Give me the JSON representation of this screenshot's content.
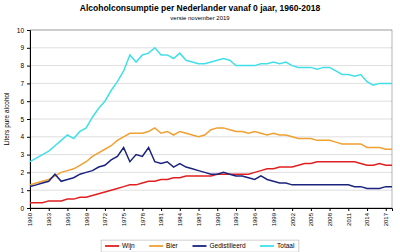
{
  "chart_data": {
    "type": "line",
    "title": "Alcoholconsumptie per Nederlander vanaf 0 jaar, 1960-2018",
    "subtitle": "versie november 2019",
    "y_label": "Liters pure alcohol",
    "x": [
      1960,
      1961,
      1962,
      1963,
      1964,
      1965,
      1966,
      1967,
      1968,
      1969,
      1970,
      1971,
      1972,
      1973,
      1974,
      1975,
      1976,
      1977,
      1978,
      1979,
      1980,
      1981,
      1982,
      1983,
      1984,
      1985,
      1986,
      1987,
      1988,
      1989,
      1990,
      1991,
      1992,
      1993,
      1994,
      1995,
      1996,
      1997,
      1998,
      1999,
      2000,
      2001,
      2002,
      2003,
      2004,
      2005,
      2006,
      2007,
      2008,
      2009,
      2010,
      2011,
      2012,
      2013,
      2014,
      2015,
      2016,
      2017,
      2018
    ],
    "xlim": [
      1960,
      2018
    ],
    "xticks": [
      1960,
      1963,
      1966,
      1969,
      1972,
      1975,
      1978,
      1981,
      1984,
      1987,
      1990,
      1993,
      1996,
      1999,
      2002,
      2005,
      2008,
      2011,
      2014,
      2017
    ],
    "ylim": [
      0,
      10
    ],
    "yticks": [
      0,
      1,
      2,
      3,
      4,
      5,
      6,
      7,
      8,
      9,
      10
    ],
    "grid": true,
    "legend": "bottom",
    "series": [
      {
        "name": "Wijn",
        "color": "#e02020",
        "values": [
          0.3,
          0.3,
          0.3,
          0.4,
          0.4,
          0.4,
          0.5,
          0.5,
          0.6,
          0.6,
          0.7,
          0.8,
          0.9,
          1.0,
          1.1,
          1.2,
          1.3,
          1.3,
          1.4,
          1.5,
          1.5,
          1.6,
          1.6,
          1.7,
          1.7,
          1.8,
          1.8,
          1.8,
          1.8,
          1.8,
          1.9,
          1.9,
          1.9,
          1.9,
          1.9,
          1.9,
          2.0,
          2.1,
          2.2,
          2.2,
          2.3,
          2.3,
          2.3,
          2.4,
          2.5,
          2.5,
          2.6,
          2.6,
          2.6,
          2.6,
          2.6,
          2.6,
          2.6,
          2.5,
          2.4,
          2.4,
          2.5,
          2.4,
          2.4
        ]
      },
      {
        "name": "Bier",
        "color": "#f0a030",
        "values": [
          1.3,
          1.4,
          1.5,
          1.6,
          1.8,
          2.0,
          2.1,
          2.2,
          2.4,
          2.6,
          2.9,
          3.1,
          3.3,
          3.5,
          3.8,
          4.0,
          4.2,
          4.2,
          4.2,
          4.3,
          4.5,
          4.2,
          4.3,
          4.1,
          4.3,
          4.2,
          4.1,
          4.0,
          4.1,
          4.4,
          4.5,
          4.5,
          4.4,
          4.3,
          4.3,
          4.2,
          4.3,
          4.2,
          4.1,
          4.2,
          4.1,
          4.1,
          4.0,
          3.9,
          3.9,
          3.9,
          3.8,
          3.8,
          3.8,
          3.7,
          3.6,
          3.6,
          3.6,
          3.6,
          3.4,
          3.4,
          3.4,
          3.3,
          3.3
        ]
      },
      {
        "name": "Gedistilleerd",
        "color": "#1a237e",
        "values": [
          1.2,
          1.3,
          1.4,
          1.5,
          1.9,
          1.5,
          1.6,
          1.7,
          1.9,
          2.0,
          2.1,
          2.3,
          2.4,
          2.7,
          2.9,
          3.4,
          2.6,
          3.0,
          2.9,
          3.4,
          2.6,
          2.5,
          2.6,
          2.3,
          2.5,
          2.3,
          2.2,
          2.1,
          2.0,
          1.9,
          1.9,
          2.0,
          1.9,
          1.8,
          1.8,
          1.7,
          1.6,
          1.8,
          1.6,
          1.5,
          1.4,
          1.4,
          1.3,
          1.3,
          1.3,
          1.3,
          1.3,
          1.3,
          1.3,
          1.3,
          1.3,
          1.3,
          1.2,
          1.2,
          1.1,
          1.1,
          1.1,
          1.2,
          1.2
        ]
      },
      {
        "name": "Totaal",
        "color": "#40e0e8",
        "values": [
          2.6,
          2.8,
          3.0,
          3.2,
          3.5,
          3.8,
          4.1,
          3.9,
          4.3,
          4.5,
          5.1,
          5.6,
          6.0,
          6.6,
          7.1,
          7.7,
          8.6,
          8.2,
          8.6,
          8.7,
          9.0,
          8.6,
          8.6,
          8.4,
          8.7,
          8.3,
          8.2,
          8.1,
          8.1,
          8.2,
          8.3,
          8.4,
          8.3,
          8.0,
          8.0,
          8.0,
          8.0,
          8.1,
          8.1,
          8.2,
          8.1,
          8.2,
          8.0,
          7.9,
          7.9,
          7.9,
          7.8,
          7.9,
          7.9,
          7.7,
          7.5,
          7.5,
          7.4,
          7.5,
          7.1,
          6.9,
          7.0,
          7.0,
          7.0
        ]
      }
    ]
  }
}
